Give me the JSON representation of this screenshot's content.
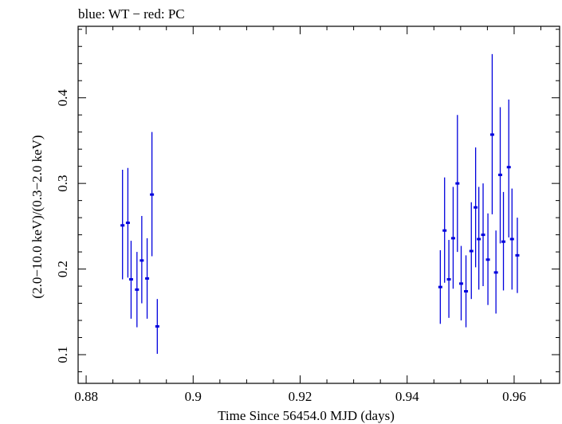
{
  "chart_data": {
    "type": "scatter",
    "title": "blue: WT − red: PC",
    "xlabel": "Time Since 56454.0 MJD (days)",
    "ylabel": "(2.0−10.0 keV)/(0.3−2.0 keV)",
    "xlim": [
      0.8785,
      0.9685
    ],
    "ylim": [
      0.0665,
      0.4835
    ],
    "x_ticks": [
      {
        "value": 0.88,
        "label": "0.88"
      },
      {
        "value": 0.9,
        "label": "0.9"
      },
      {
        "value": 0.92,
        "label": "0.92"
      },
      {
        "value": 0.94,
        "label": "0.94"
      },
      {
        "value": 0.96,
        "label": "0.96"
      }
    ],
    "y_ticks": [
      {
        "value": 0.1,
        "label": "0.1"
      },
      {
        "value": 0.2,
        "label": "0.2"
      },
      {
        "value": 0.3,
        "label": "0.3"
      },
      {
        "value": 0.4,
        "label": "0.4"
      }
    ],
    "grid": false,
    "series": [
      {
        "color": "#0000dd",
        "points": [
          {
            "x": 0.8868,
            "y": 0.251,
            "ylo": 0.188,
            "yhi": 0.316
          },
          {
            "x": 0.8878,
            "y": 0.254,
            "ylo": 0.19,
            "yhi": 0.318
          },
          {
            "x": 0.8884,
            "y": 0.188,
            "ylo": 0.142,
            "yhi": 0.233
          },
          {
            "x": 0.8895,
            "y": 0.176,
            "ylo": 0.132,
            "yhi": 0.22
          },
          {
            "x": 0.8904,
            "y": 0.21,
            "ylo": 0.16,
            "yhi": 0.262
          },
          {
            "x": 0.8914,
            "y": 0.189,
            "ylo": 0.142,
            "yhi": 0.236
          },
          {
            "x": 0.8923,
            "y": 0.287,
            "ylo": 0.215,
            "yhi": 0.36
          },
          {
            "x": 0.8933,
            "y": 0.133,
            "ylo": 0.101,
            "yhi": 0.165
          },
          {
            "x": 0.9462,
            "y": 0.179,
            "ylo": 0.136,
            "yhi": 0.222
          },
          {
            "x": 0.947,
            "y": 0.245,
            "ylo": 0.184,
            "yhi": 0.307
          },
          {
            "x": 0.9478,
            "y": 0.188,
            "ylo": 0.143,
            "yhi": 0.234
          },
          {
            "x": 0.9486,
            "y": 0.236,
            "ylo": 0.177,
            "yhi": 0.296
          },
          {
            "x": 0.9494,
            "y": 0.3,
            "ylo": 0.22,
            "yhi": 0.38
          },
          {
            "x": 0.9501,
            "y": 0.183,
            "ylo": 0.14,
            "yhi": 0.227
          },
          {
            "x": 0.951,
            "y": 0.174,
            "ylo": 0.132,
            "yhi": 0.216
          },
          {
            "x": 0.952,
            "y": 0.221,
            "ylo": 0.165,
            "yhi": 0.278
          },
          {
            "x": 0.9528,
            "y": 0.272,
            "ylo": 0.202,
            "yhi": 0.342
          },
          {
            "x": 0.9534,
            "y": 0.235,
            "ylo": 0.176,
            "yhi": 0.296
          },
          {
            "x": 0.9542,
            "y": 0.24,
            "ylo": 0.18,
            "yhi": 0.3
          },
          {
            "x": 0.9551,
            "y": 0.211,
            "ylo": 0.158,
            "yhi": 0.265
          },
          {
            "x": 0.9559,
            "y": 0.357,
            "ylo": 0.264,
            "yhi": 0.451
          },
          {
            "x": 0.9566,
            "y": 0.196,
            "ylo": 0.148,
            "yhi": 0.245
          },
          {
            "x": 0.9574,
            "y": 0.31,
            "ylo": 0.23,
            "yhi": 0.389
          },
          {
            "x": 0.958,
            "y": 0.232,
            "ylo": 0.175,
            "yhi": 0.29
          },
          {
            "x": 0.959,
            "y": 0.319,
            "ylo": 0.237,
            "yhi": 0.398
          },
          {
            "x": 0.9596,
            "y": 0.235,
            "ylo": 0.176,
            "yhi": 0.294
          },
          {
            "x": 0.9606,
            "y": 0.216,
            "ylo": 0.172,
            "yhi": 0.26
          }
        ]
      }
    ]
  }
}
